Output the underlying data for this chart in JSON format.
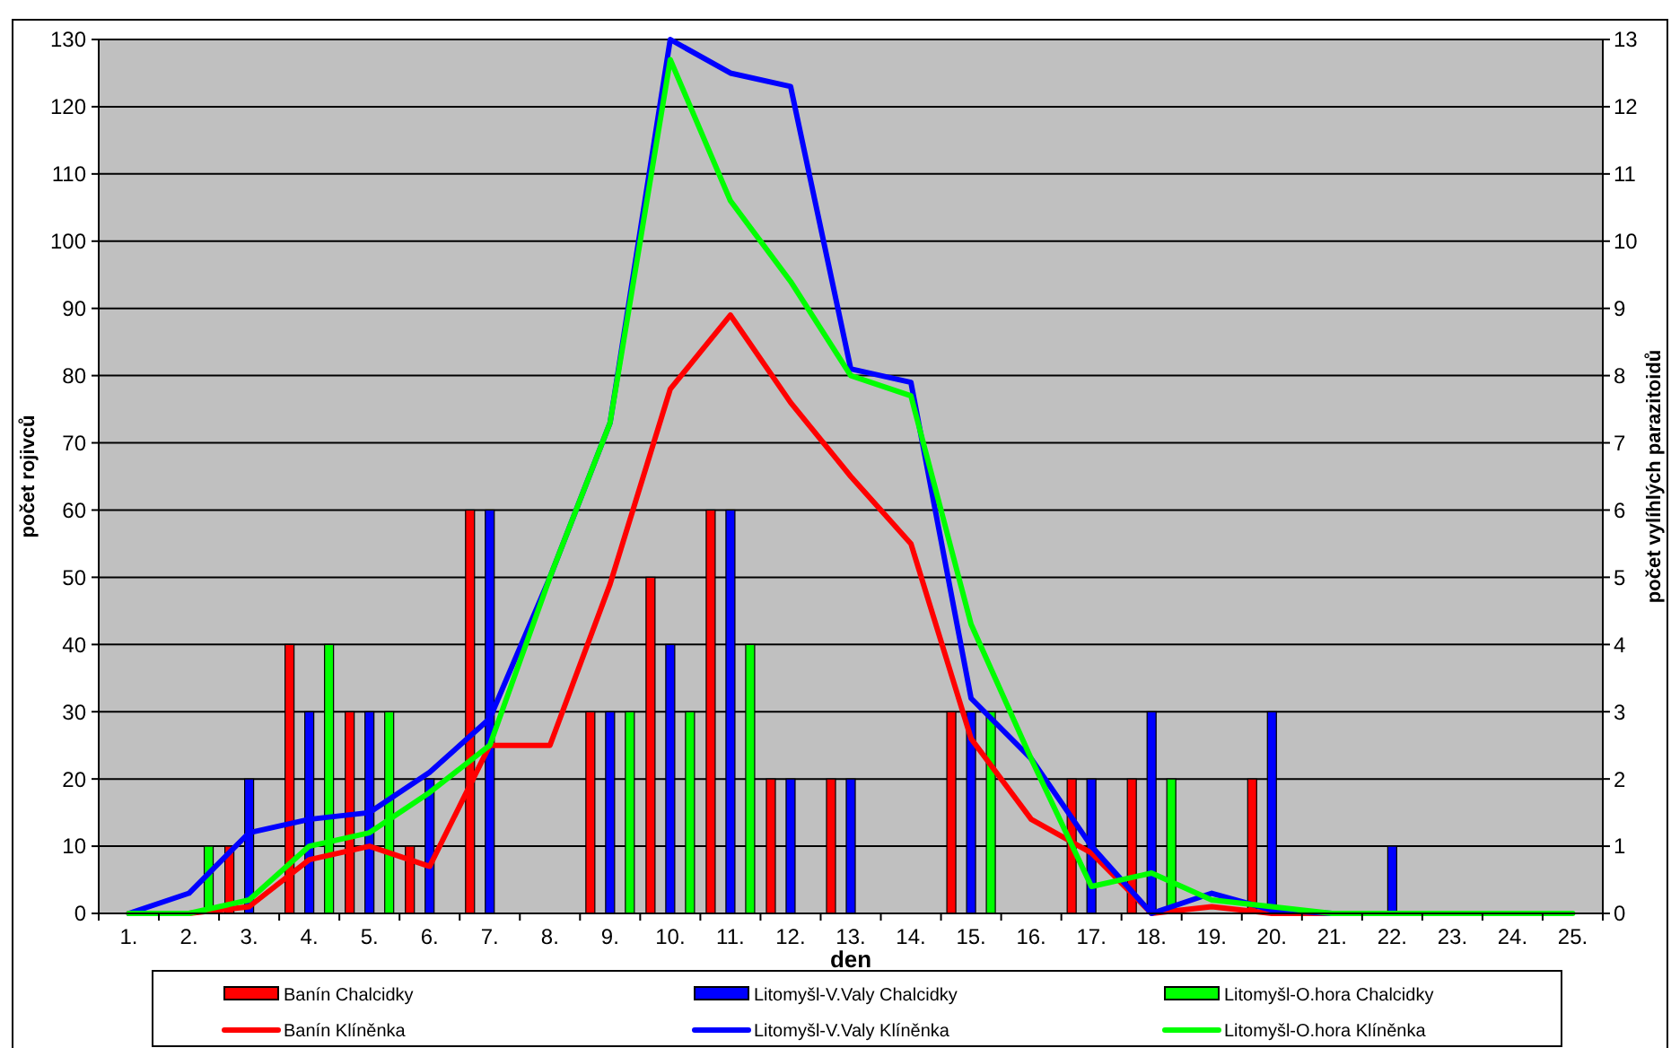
{
  "chart_data": {
    "type": "bar",
    "xlabel": "den",
    "ylabel": "počet rojivců",
    "y2label": "počet vylíhlých parazitoidů",
    "categories": [
      "1.",
      "2.",
      "3.",
      "4.",
      "5.",
      "6.",
      "7.",
      "8.",
      "9.",
      "10.",
      "11.",
      "12.",
      "13.",
      "14.",
      "15.",
      "16.",
      "17.",
      "18.",
      "19.",
      "20.",
      "21.",
      "22.",
      "23.",
      "24.",
      "25."
    ],
    "ylim": [
      0,
      130
    ],
    "yticks": [
      0,
      10,
      20,
      30,
      40,
      50,
      60,
      70,
      80,
      90,
      100,
      110,
      120,
      130
    ],
    "y2lim": [
      0,
      13
    ],
    "y2ticks": [
      0,
      1,
      2,
      3,
      4,
      5,
      6,
      7,
      8,
      9,
      10,
      11,
      12,
      13
    ],
    "grid": "y",
    "legend": "bottom",
    "series": [
      {
        "name": "Banín Chalcidky",
        "axis": "y2",
        "color": "#ff0000",
        "values": [
          null,
          null,
          1,
          4,
          3,
          1,
          6,
          null,
          3,
          5,
          6,
          2,
          2,
          null,
          3,
          null,
          2,
          2,
          null,
          2,
          null,
          null,
          null,
          null,
          null
        ]
      },
      {
        "name": "Litomyšl-V.Valy Chalcidky",
        "axis": "y2",
        "color": "#0000ff",
        "values": [
          null,
          null,
          2,
          3,
          3,
          2,
          6,
          null,
          3,
          4,
          6,
          2,
          2,
          null,
          3,
          null,
          2,
          3,
          null,
          3,
          null,
          1,
          null,
          null,
          null
        ]
      },
      {
        "name": "Litomyšl-O.hora Chalcidky",
        "axis": "y2",
        "color": "#00ff00",
        "values": [
          null,
          1,
          null,
          4,
          3,
          null,
          null,
          null,
          3,
          3,
          4,
          null,
          null,
          null,
          3,
          null,
          null,
          2,
          null,
          null,
          null,
          null,
          null,
          null,
          null
        ]
      },
      {
        "name": "Banín Klíněnka",
        "type": "line",
        "color": "#ff0000",
        "values": [
          0,
          0,
          1,
          8,
          10,
          7,
          25,
          25,
          49,
          78,
          89,
          76,
          65,
          55,
          26,
          14,
          9,
          0,
          1,
          0,
          0,
          0,
          null,
          null,
          null
        ]
      },
      {
        "name": "Litomyšl-V.Valy Klíněnka",
        "type": "line",
        "color": "#0000ff",
        "values": [
          0,
          3,
          12,
          14,
          15,
          21,
          29,
          50,
          73,
          130,
          125,
          123,
          81,
          79,
          32,
          23,
          10,
          0,
          3,
          0.5,
          0,
          0,
          0,
          null,
          null
        ]
      },
      {
        "name": "Litomyšl-O.hora Klíněnka",
        "type": "line",
        "color": "#00ff00",
        "values": [
          0,
          0,
          2,
          10,
          12,
          18,
          25,
          50,
          73,
          127,
          106,
          94,
          80,
          77,
          43,
          23,
          4,
          6,
          2,
          1,
          0,
          0,
          0,
          0,
          0
        ]
      }
    ]
  }
}
